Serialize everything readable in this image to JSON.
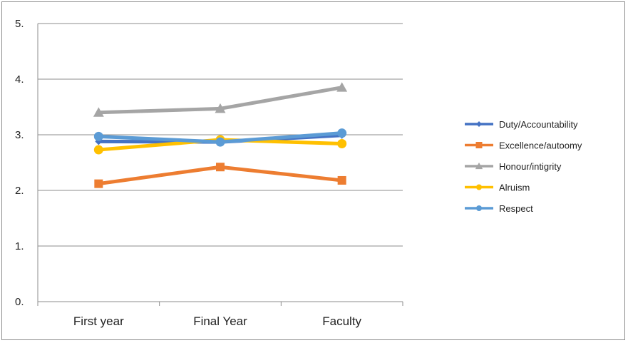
{
  "chart_data": {
    "type": "line",
    "categories": [
      "First year",
      "Final Year",
      "Faculty"
    ],
    "y_ticks": [
      "0.",
      "1.",
      "2.",
      "3.",
      "4.",
      "5."
    ],
    "ylim": [
      0,
      5
    ],
    "grid": true,
    "legend_position": "right",
    "series": [
      {
        "name": "Duty/Accountability",
        "values": [
          2.88,
          2.87,
          2.99
        ],
        "color": "#4472c4",
        "marker": "diamond"
      },
      {
        "name": "Excellence/autoomy",
        "values": [
          2.12,
          2.42,
          2.18
        ],
        "color": "#ed7d31",
        "marker": "square"
      },
      {
        "name": "Honour/intigrity",
        "values": [
          3.4,
          3.47,
          3.85
        ],
        "color": "#a5a5a5",
        "marker": "triangle"
      },
      {
        "name": "Alruism",
        "values": [
          2.73,
          2.91,
          2.84
        ],
        "color": "#ffc000",
        "marker": "circle"
      },
      {
        "name": "Respect",
        "values": [
          2.97,
          2.87,
          3.03
        ],
        "color": "#5b9bd5",
        "marker": "circle"
      }
    ]
  }
}
